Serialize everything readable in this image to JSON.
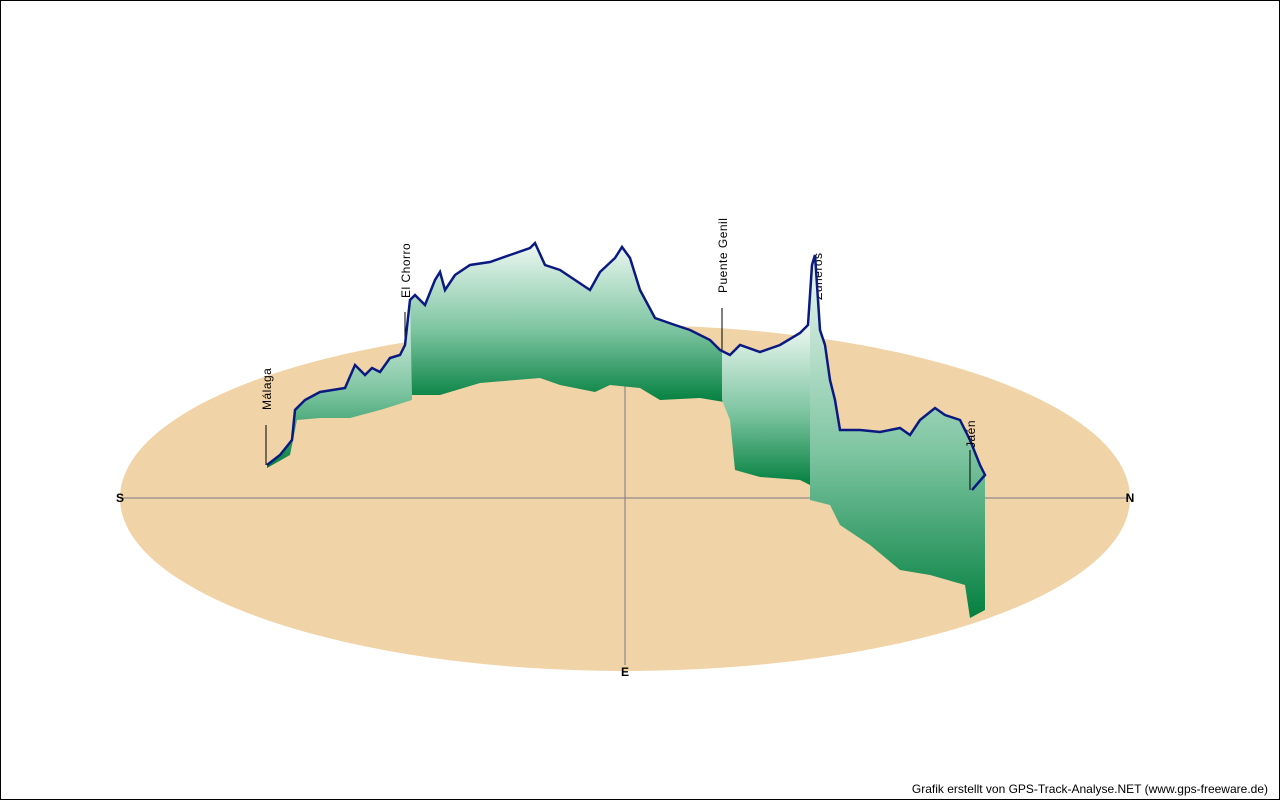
{
  "compass": {
    "south": "S",
    "north": "N",
    "east": "E"
  },
  "places": [
    "Málaga",
    "El Chorro",
    "Puente Genil",
    "Zuheros",
    "Jaén"
  ],
  "credit": "Grafik erstellt von GPS-Track-Analyse.NET (www.gps-freeware.de)"
}
